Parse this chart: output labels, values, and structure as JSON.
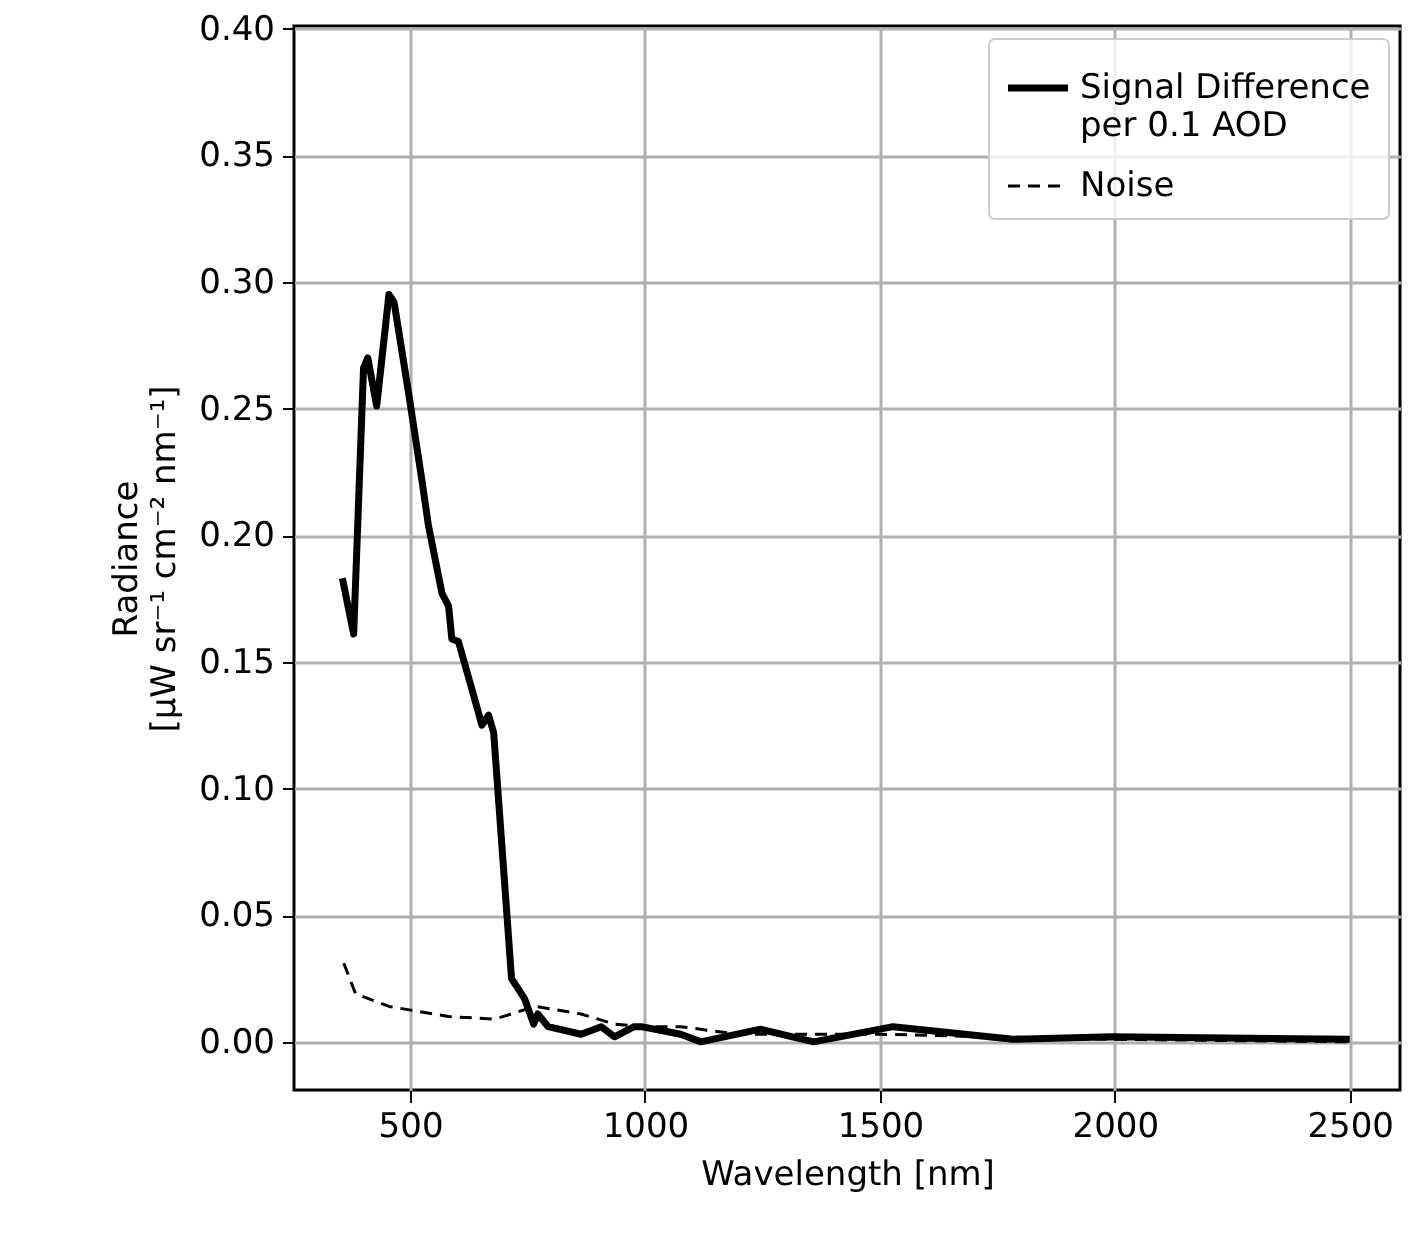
{
  "chart_data": {
    "type": "line",
    "xlabel": "Wavelength [nm]",
    "ylabel": "Radiance\n[μW sr⁻¹ cm⁻² nm⁻¹]",
    "xlim": [
      253,
      2607
    ],
    "ylim": [
      -0.019,
      0.401
    ],
    "xticks": [
      500,
      1000,
      1500,
      2000,
      2500
    ],
    "yticks": [
      {
        "value": 0,
        "label": "0.00"
      },
      {
        "value": 0.05,
        "label": "0.05"
      },
      {
        "value": 0.1,
        "label": "0.10"
      },
      {
        "value": 0.15,
        "label": "0.15"
      },
      {
        "value": 0.2,
        "label": "0.20"
      },
      {
        "value": 0.25,
        "label": "0.25"
      },
      {
        "value": 0.3,
        "label": "0.30"
      },
      {
        "value": 0.35,
        "label": "0.35"
      },
      {
        "value": 0.4,
        "label": "0.40"
      }
    ],
    "grid": true,
    "legend": "top right",
    "series": [
      {
        "name": "Signal Difference\nper 0.1 AOD",
        "color": "#000000",
        "line_style": "solid",
        "x": [
          356,
          380,
          401,
          410,
          429,
          455,
          466,
          497,
          525,
          539,
          568,
          582,
          589,
          603,
          638,
          653,
          667,
          678,
          716,
          744,
          763,
          772,
          794,
          864,
          907,
          935,
          977,
          992,
          1076,
          1119,
          1246,
          1359,
          1528,
          1783,
          1994,
          2500
        ],
        "values": [
          0.183,
          0.161,
          0.266,
          0.27,
          0.251,
          0.295,
          0.292,
          0.256,
          0.222,
          0.204,
          0.177,
          0.172,
          0.159,
          0.158,
          0.135,
          0.125,
          0.129,
          0.122,
          0.025,
          0.017,
          0.007,
          0.011,
          0.006,
          0.003,
          0.006,
          0.002,
          0.006,
          0.006,
          0.003,
          0.0,
          0.005,
          0.0,
          0.006,
          0.001,
          0.002,
          0.001
        ]
      },
      {
        "name": "Noise",
        "color": "#000000",
        "line_style": "dashed",
        "x": [
          359,
          384,
          455,
          582,
          681,
          766,
          864,
          935,
          1000,
          1076,
          1200,
          1500,
          2000,
          2500
        ],
        "values": [
          0.031,
          0.019,
          0.014,
          0.01,
          0.009,
          0.014,
          0.011,
          0.007,
          0.006,
          0.006,
          0.003,
          0.003,
          0.001,
          0.0
        ]
      }
    ]
  }
}
